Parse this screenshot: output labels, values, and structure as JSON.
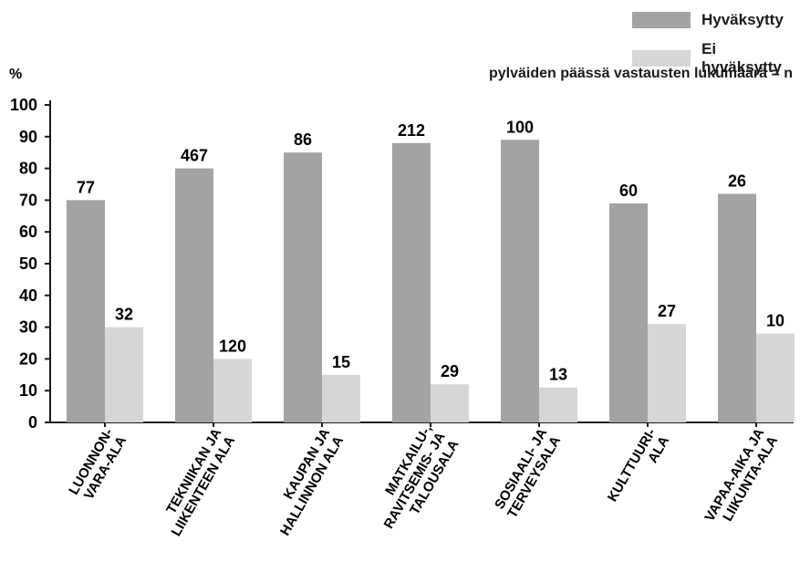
{
  "chart_data": {
    "type": "bar",
    "ylabel": "%",
    "ylim": [
      0,
      100
    ],
    "yticks": [
      0,
      10,
      20,
      30,
      40,
      50,
      60,
      70,
      80,
      90,
      100
    ],
    "grid": false,
    "legend_position": "top-right",
    "note": "pylväiden päässä vastausten lukumäärä = n",
    "categories": [
      [
        "LUONNON-",
        "VARA-ALA"
      ],
      [
        "TEKNIIKAN JA",
        "LIIKENTEEN ALA"
      ],
      [
        "KAUPAN JA",
        "HALLINNON ALA"
      ],
      [
        "MATKAILU-,",
        "RAVITSEMIS- JA",
        "TALOUSALA"
      ],
      [
        "SOSIAALI- JA",
        "TERVEYSALA"
      ],
      [
        "KULTTUURI-",
        "ALA"
      ],
      [
        "VAPAA-AIKA JA",
        "LIIKUNTA-ALA"
      ]
    ],
    "series": [
      {
        "name": "Hyväksytty",
        "color": "#a3a3a5",
        "values": [
          70,
          80,
          85,
          88,
          89,
          69,
          72
        ],
        "n": [
          "77",
          "467",
          "86",
          "212",
          "100",
          "60",
          "26"
        ]
      },
      {
        "name": "Ei hyväksytty",
        "color": "#d6d6d7",
        "values": [
          30,
          20,
          15,
          12,
          11,
          31,
          28
        ],
        "n": [
          "32",
          "120",
          "15",
          "29",
          "13",
          "27",
          "10"
        ]
      }
    ]
  }
}
